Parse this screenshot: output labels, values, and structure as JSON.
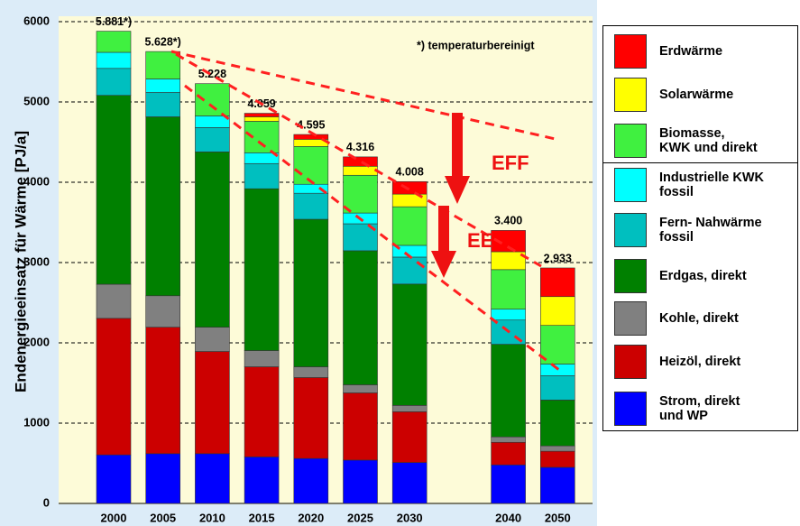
{
  "chart_data": {
    "type": "stacked_bar",
    "y_label": "Endenergieeinsatz für Wärme [PJ/a]",
    "categories": [
      "2000",
      "2005",
      "2010",
      "2015",
      "2020",
      "2025",
      "2030",
      null,
      "2040",
      "2050"
    ],
    "ylim": [
      0,
      6000
    ],
    "yticks": [
      0,
      1000,
      2000,
      3000,
      4000,
      5000,
      6000
    ],
    "grid": true,
    "series": [
      {
        "name": "Strom, direkt\nund WP",
        "color": "#0000ff",
        "values": [
          605,
          620,
          620,
          580,
          560,
          540,
          510,
          null,
          480,
          450
        ]
      },
      {
        "name": "Heizöl, direkt",
        "color": "#cc0000",
        "values": [
          1700,
          1575,
          1273,
          1122,
          1008,
          837,
          632,
          null,
          281,
          200
        ]
      },
      {
        "name": "Kohle, direkt",
        "color": "#808080",
        "values": [
          425,
          392,
          302,
          202,
          134,
          101,
          79,
          null,
          68,
          67
        ]
      },
      {
        "name": "Erdgas, direkt",
        "color": "#008000",
        "values": [
          2352,
          2228,
          2183,
          2015,
          1837,
          1669,
          1511,
          null,
          1153,
          571
        ]
      },
      {
        "name": "Fern- Nahwärme\nfossil",
        "color": "#00bfbf",
        "values": [
          336,
          303,
          303,
          314,
          324,
          336,
          336,
          null,
          302,
          302
        ]
      },
      {
        "name": "Industrielle KWK\nfossil",
        "color": "#00ffff",
        "values": [
          200,
          168,
          145,
          134,
          112,
          134,
          146,
          null,
          135,
          146
        ]
      },
      {
        "name": "Biomasse,\nKWK und direkt",
        "color": "#40f040",
        "values": [
          263,
          342,
          402,
          392,
          471,
          470,
          481,
          null,
          493,
          481
        ]
      },
      {
        "name": "Solarwärme",
        "color": "#ffff00",
        "values": [
          0,
          0,
          0,
          56,
          89,
          112,
          157,
          null,
          223,
          359
        ]
      },
      {
        "name": "Erdwärme",
        "color": "#ff0000",
        "values": [
          0,
          0,
          0,
          44,
          60,
          117,
          156,
          null,
          265,
          357
        ]
      }
    ],
    "totals": {
      "values": [
        5881,
        5628,
        5228,
        4859,
        4595,
        4316,
        4008,
        null,
        3400,
        2933
      ],
      "value_labels": [
        "5.881*)",
        "5.628*)",
        "5.228",
        "4.859",
        "4.595",
        "4.316",
        "4.008",
        null,
        "3.400",
        "2.933"
      ]
    },
    "annotations": {
      "note": "*) temperaturbereinigt",
      "eff": "EFF",
      "ee": "EE"
    }
  }
}
